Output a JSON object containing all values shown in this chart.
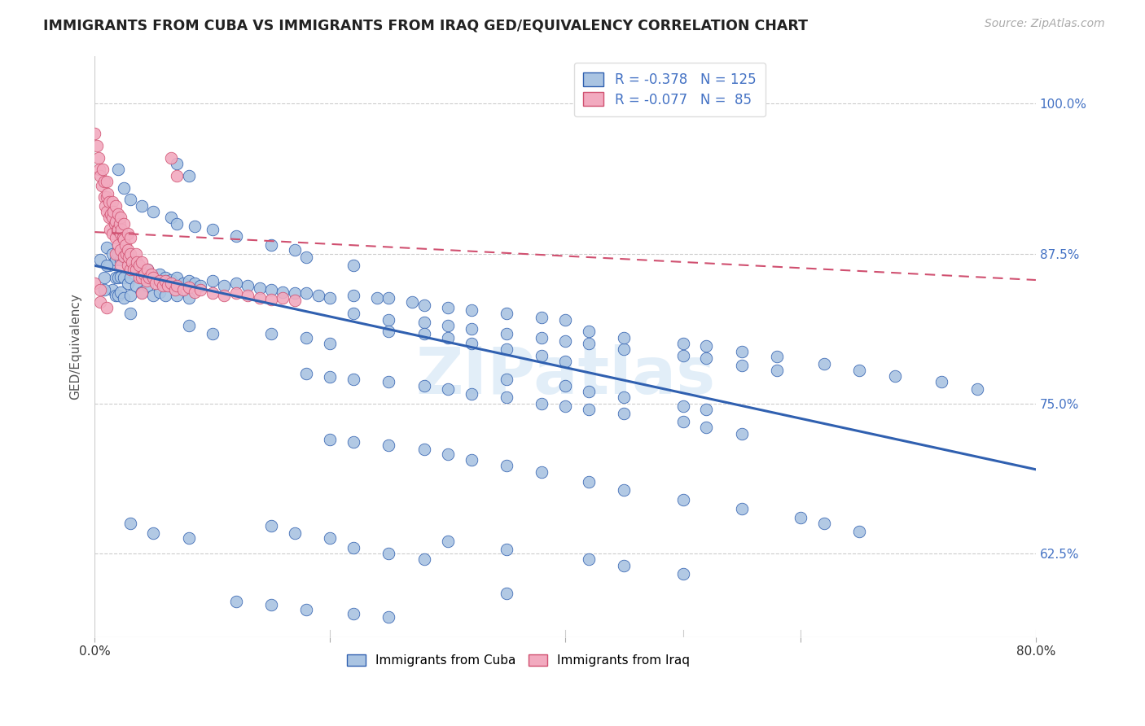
{
  "title": "IMMIGRANTS FROM CUBA VS IMMIGRANTS FROM IRAQ GED/EQUIVALENCY CORRELATION CHART",
  "source": "Source: ZipAtlas.com",
  "ylabel": "GED/Equivalency",
  "ytick_labels": [
    "100.0%",
    "87.5%",
    "75.0%",
    "62.5%"
  ],
  "ytick_values": [
    1.0,
    0.875,
    0.75,
    0.625
  ],
  "xlim": [
    0.0,
    0.8
  ],
  "ylim": [
    0.555,
    1.04
  ],
  "color_cuba": "#aac4e2",
  "color_iraq": "#f2aabf",
  "line_color_cuba": "#3060b0",
  "line_color_iraq": "#d05070",
  "watermark": "ZIPatlas",
  "cuba_line": [
    0.0,
    0.865,
    0.8,
    0.695
  ],
  "iraq_line": [
    0.0,
    0.893,
    0.8,
    0.853
  ],
  "scatter_cuba": [
    [
      0.005,
      0.87
    ],
    [
      0.008,
      0.855
    ],
    [
      0.01,
      0.88
    ],
    [
      0.012,
      0.865
    ],
    [
      0.015,
      0.875
    ],
    [
      0.015,
      0.845
    ],
    [
      0.018,
      0.87
    ],
    [
      0.018,
      0.855
    ],
    [
      0.018,
      0.84
    ],
    [
      0.02,
      0.875
    ],
    [
      0.02,
      0.855
    ],
    [
      0.02,
      0.84
    ],
    [
      0.022,
      0.87
    ],
    [
      0.022,
      0.856
    ],
    [
      0.022,
      0.843
    ],
    [
      0.025,
      0.872
    ],
    [
      0.025,
      0.855
    ],
    [
      0.025,
      0.838
    ],
    [
      0.028,
      0.868
    ],
    [
      0.028,
      0.85
    ],
    [
      0.03,
      0.87
    ],
    [
      0.03,
      0.855
    ],
    [
      0.03,
      0.84
    ],
    [
      0.03,
      0.825
    ],
    [
      0.035,
      0.865
    ],
    [
      0.035,
      0.848
    ],
    [
      0.038,
      0.862
    ],
    [
      0.04,
      0.858
    ],
    [
      0.04,
      0.843
    ],
    [
      0.045,
      0.862
    ],
    [
      0.045,
      0.848
    ],
    [
      0.05,
      0.855
    ],
    [
      0.05,
      0.84
    ],
    [
      0.055,
      0.858
    ],
    [
      0.055,
      0.843
    ],
    [
      0.06,
      0.855
    ],
    [
      0.06,
      0.84
    ],
    [
      0.065,
      0.853
    ],
    [
      0.07,
      0.855
    ],
    [
      0.07,
      0.84
    ],
    [
      0.075,
      0.85
    ],
    [
      0.08,
      0.852
    ],
    [
      0.08,
      0.838
    ],
    [
      0.085,
      0.85
    ],
    [
      0.09,
      0.848
    ],
    [
      0.1,
      0.852
    ],
    [
      0.11,
      0.848
    ],
    [
      0.12,
      0.85
    ],
    [
      0.13,
      0.848
    ],
    [
      0.14,
      0.846
    ],
    [
      0.15,
      0.845
    ],
    [
      0.16,
      0.843
    ],
    [
      0.17,
      0.842
    ],
    [
      0.18,
      0.842
    ],
    [
      0.19,
      0.84
    ],
    [
      0.2,
      0.838
    ],
    [
      0.008,
      0.845
    ],
    [
      0.01,
      0.865
    ],
    [
      0.02,
      0.945
    ],
    [
      0.025,
      0.93
    ],
    [
      0.03,
      0.92
    ],
    [
      0.04,
      0.915
    ],
    [
      0.05,
      0.91
    ],
    [
      0.065,
      0.905
    ],
    [
      0.07,
      0.9
    ],
    [
      0.085,
      0.898
    ],
    [
      0.1,
      0.895
    ],
    [
      0.12,
      0.89
    ],
    [
      0.15,
      0.882
    ],
    [
      0.17,
      0.878
    ],
    [
      0.18,
      0.872
    ],
    [
      0.22,
      0.865
    ],
    [
      0.07,
      0.95
    ],
    [
      0.08,
      0.94
    ],
    [
      0.22,
      0.84
    ],
    [
      0.24,
      0.838
    ],
    [
      0.25,
      0.838
    ],
    [
      0.27,
      0.835
    ],
    [
      0.28,
      0.832
    ],
    [
      0.3,
      0.83
    ],
    [
      0.32,
      0.828
    ],
    [
      0.35,
      0.825
    ],
    [
      0.38,
      0.822
    ],
    [
      0.4,
      0.82
    ],
    [
      0.22,
      0.825
    ],
    [
      0.25,
      0.82
    ],
    [
      0.28,
      0.818
    ],
    [
      0.3,
      0.815
    ],
    [
      0.32,
      0.812
    ],
    [
      0.35,
      0.808
    ],
    [
      0.38,
      0.805
    ],
    [
      0.4,
      0.802
    ],
    [
      0.42,
      0.8
    ],
    [
      0.45,
      0.795
    ],
    [
      0.5,
      0.79
    ],
    [
      0.52,
      0.788
    ],
    [
      0.55,
      0.782
    ],
    [
      0.58,
      0.778
    ],
    [
      0.42,
      0.81
    ],
    [
      0.45,
      0.805
    ],
    [
      0.5,
      0.8
    ],
    [
      0.52,
      0.798
    ],
    [
      0.55,
      0.793
    ],
    [
      0.58,
      0.789
    ],
    [
      0.62,
      0.783
    ],
    [
      0.65,
      0.778
    ],
    [
      0.68,
      0.773
    ],
    [
      0.72,
      0.768
    ],
    [
      0.75,
      0.762
    ],
    [
      0.25,
      0.81
    ],
    [
      0.28,
      0.808
    ],
    [
      0.3,
      0.805
    ],
    [
      0.32,
      0.8
    ],
    [
      0.35,
      0.795
    ],
    [
      0.38,
      0.79
    ],
    [
      0.4,
      0.785
    ],
    [
      0.15,
      0.808
    ],
    [
      0.18,
      0.805
    ],
    [
      0.2,
      0.8
    ],
    [
      0.08,
      0.815
    ],
    [
      0.1,
      0.808
    ],
    [
      0.18,
      0.775
    ],
    [
      0.2,
      0.772
    ],
    [
      0.22,
      0.77
    ],
    [
      0.25,
      0.768
    ],
    [
      0.28,
      0.765
    ],
    [
      0.3,
      0.762
    ],
    [
      0.32,
      0.758
    ],
    [
      0.35,
      0.755
    ],
    [
      0.38,
      0.75
    ],
    [
      0.4,
      0.748
    ],
    [
      0.42,
      0.745
    ],
    [
      0.45,
      0.742
    ],
    [
      0.5,
      0.735
    ],
    [
      0.52,
      0.73
    ],
    [
      0.55,
      0.725
    ],
    [
      0.35,
      0.77
    ],
    [
      0.4,
      0.765
    ],
    [
      0.42,
      0.76
    ],
    [
      0.45,
      0.755
    ],
    [
      0.5,
      0.748
    ],
    [
      0.52,
      0.745
    ],
    [
      0.2,
      0.72
    ],
    [
      0.22,
      0.718
    ],
    [
      0.25,
      0.715
    ],
    [
      0.28,
      0.712
    ],
    [
      0.3,
      0.708
    ],
    [
      0.32,
      0.703
    ],
    [
      0.35,
      0.698
    ],
    [
      0.38,
      0.693
    ],
    [
      0.42,
      0.685
    ],
    [
      0.45,
      0.678
    ],
    [
      0.5,
      0.67
    ],
    [
      0.55,
      0.662
    ],
    [
      0.6,
      0.655
    ],
    [
      0.62,
      0.65
    ],
    [
      0.65,
      0.643
    ],
    [
      0.03,
      0.65
    ],
    [
      0.05,
      0.642
    ],
    [
      0.08,
      0.638
    ],
    [
      0.15,
      0.648
    ],
    [
      0.17,
      0.642
    ],
    [
      0.2,
      0.638
    ],
    [
      0.3,
      0.635
    ],
    [
      0.35,
      0.628
    ],
    [
      0.42,
      0.62
    ],
    [
      0.22,
      0.63
    ],
    [
      0.25,
      0.625
    ],
    [
      0.28,
      0.62
    ],
    [
      0.45,
      0.615
    ],
    [
      0.5,
      0.608
    ],
    [
      0.12,
      0.585
    ],
    [
      0.15,
      0.582
    ],
    [
      0.18,
      0.578
    ],
    [
      0.22,
      0.575
    ],
    [
      0.25,
      0.572
    ],
    [
      0.35,
      0.592
    ]
  ],
  "scatter_iraq": [
    [
      0.0,
      0.975
    ],
    [
      0.002,
      0.965
    ],
    [
      0.003,
      0.955
    ],
    [
      0.004,
      0.945
    ],
    [
      0.005,
      0.94
    ],
    [
      0.006,
      0.932
    ],
    [
      0.007,
      0.945
    ],
    [
      0.008,
      0.935
    ],
    [
      0.008,
      0.922
    ],
    [
      0.009,
      0.915
    ],
    [
      0.01,
      0.935
    ],
    [
      0.01,
      0.922
    ],
    [
      0.01,
      0.91
    ],
    [
      0.011,
      0.925
    ],
    [
      0.012,
      0.918
    ],
    [
      0.012,
      0.905
    ],
    [
      0.013,
      0.895
    ],
    [
      0.014,
      0.908
    ],
    [
      0.015,
      0.918
    ],
    [
      0.015,
      0.905
    ],
    [
      0.015,
      0.892
    ],
    [
      0.016,
      0.91
    ],
    [
      0.017,
      0.9
    ],
    [
      0.018,
      0.915
    ],
    [
      0.018,
      0.902
    ],
    [
      0.018,
      0.888
    ],
    [
      0.018,
      0.875
    ],
    [
      0.019,
      0.895
    ],
    [
      0.02,
      0.908
    ],
    [
      0.02,
      0.895
    ],
    [
      0.02,
      0.882
    ],
    [
      0.021,
      0.9
    ],
    [
      0.022,
      0.905
    ],
    [
      0.022,
      0.892
    ],
    [
      0.022,
      0.878
    ],
    [
      0.022,
      0.865
    ],
    [
      0.023,
      0.895
    ],
    [
      0.024,
      0.888
    ],
    [
      0.025,
      0.9
    ],
    [
      0.025,
      0.887
    ],
    [
      0.025,
      0.873
    ],
    [
      0.026,
      0.882
    ],
    [
      0.027,
      0.875
    ],
    [
      0.028,
      0.892
    ],
    [
      0.028,
      0.878
    ],
    [
      0.028,
      0.865
    ],
    [
      0.029,
      0.872
    ],
    [
      0.03,
      0.888
    ],
    [
      0.03,
      0.875
    ],
    [
      0.03,
      0.862
    ],
    [
      0.032,
      0.868
    ],
    [
      0.033,
      0.862
    ],
    [
      0.035,
      0.875
    ],
    [
      0.035,
      0.862
    ],
    [
      0.036,
      0.868
    ],
    [
      0.038,
      0.865
    ],
    [
      0.038,
      0.855
    ],
    [
      0.04,
      0.868
    ],
    [
      0.04,
      0.855
    ],
    [
      0.04,
      0.842
    ],
    [
      0.042,
      0.858
    ],
    [
      0.044,
      0.852
    ],
    [
      0.045,
      0.862
    ],
    [
      0.046,
      0.855
    ],
    [
      0.048,
      0.858
    ],
    [
      0.05,
      0.855
    ],
    [
      0.052,
      0.85
    ],
    [
      0.055,
      0.852
    ],
    [
      0.058,
      0.848
    ],
    [
      0.06,
      0.852
    ],
    [
      0.062,
      0.848
    ],
    [
      0.065,
      0.85
    ],
    [
      0.068,
      0.845
    ],
    [
      0.07,
      0.848
    ],
    [
      0.075,
      0.845
    ],
    [
      0.08,
      0.847
    ],
    [
      0.085,
      0.843
    ],
    [
      0.09,
      0.845
    ],
    [
      0.1,
      0.842
    ],
    [
      0.11,
      0.84
    ],
    [
      0.12,
      0.842
    ],
    [
      0.13,
      0.84
    ],
    [
      0.14,
      0.838
    ],
    [
      0.15,
      0.837
    ],
    [
      0.16,
      0.838
    ],
    [
      0.17,
      0.836
    ],
    [
      0.0,
      0.85
    ],
    [
      0.005,
      0.845
    ],
    [
      0.065,
      0.955
    ],
    [
      0.07,
      0.94
    ],
    [
      0.005,
      0.835
    ],
    [
      0.01,
      0.83
    ]
  ]
}
